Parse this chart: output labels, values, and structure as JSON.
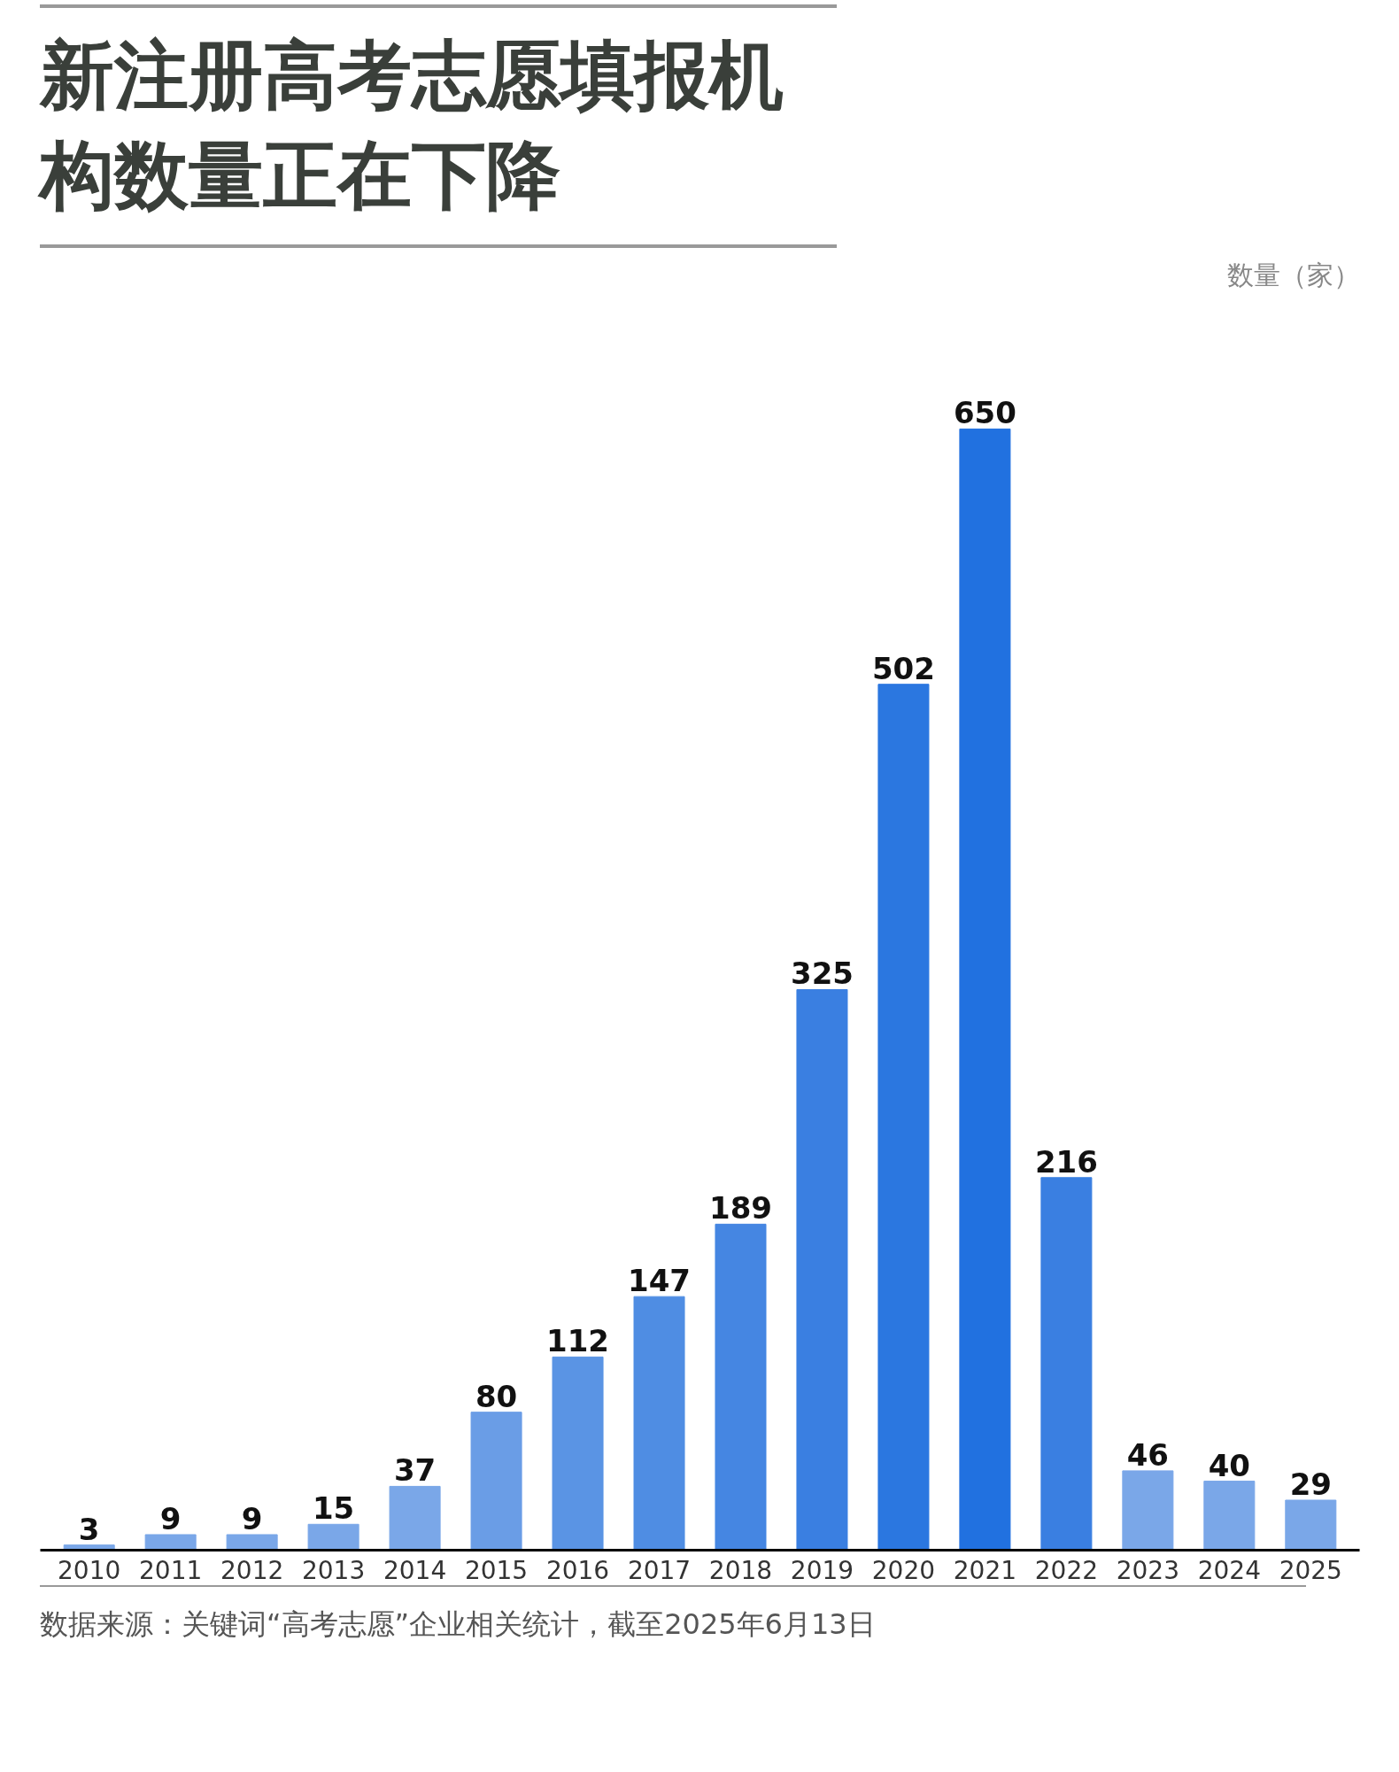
{
  "chart_data": {
    "type": "bar",
    "title": "新注册高考志愿填报机构数量正在下降",
    "categories": [
      "2010",
      "2011",
      "2012",
      "2013",
      "2014",
      "2015",
      "2016",
      "2017",
      "2018",
      "2019",
      "2020",
      "2021",
      "2022",
      "2023",
      "2024",
      "2025"
    ],
    "values": [
      3,
      9,
      9,
      15,
      37,
      80,
      112,
      147,
      189,
      325,
      502,
      650,
      216,
      46,
      40,
      29
    ],
    "colors": [
      "#7aa7e8",
      "#7aa7e8",
      "#7aa7e8",
      "#7aa7e8",
      "#7aa7e8",
      "#6a9de6",
      "#5a94e4",
      "#4f8de3",
      "#4586e2",
      "#3a7fe1",
      "#2b77e0",
      "#2171e0",
      "#3a7fe1",
      "#7aa7e8",
      "#7aa7e8",
      "#7aa7e8"
    ],
    "data_labels": true,
    "grid": false,
    "annotations": [
      "数量（家）",
      "数据来源：关键词“高考志愿”企业相关统计，截至2025年6月13日"
    ]
  }
}
